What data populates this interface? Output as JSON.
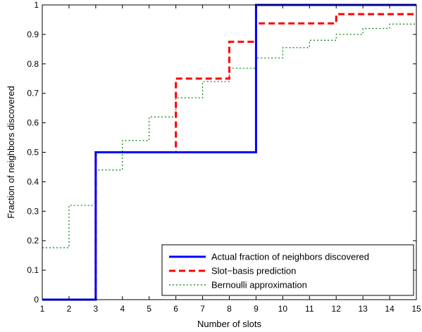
{
  "chart_data": {
    "type": "line",
    "xlabel": "Number of slots",
    "ylabel": "Fraction of neighbors discovered",
    "xlim": [
      1,
      15
    ],
    "ylim": [
      0,
      1
    ],
    "x_ticks": [
      "1",
      "2",
      "3",
      "4",
      "5",
      "6",
      "7",
      "8",
      "9",
      "10",
      "11",
      "12",
      "13",
      "14",
      "15"
    ],
    "y_ticks": [
      "0",
      "0.1",
      "0.2",
      "0.3",
      "0.4",
      "0.5",
      "0.6",
      "0.7",
      "0.8",
      "0.9",
      "1"
    ],
    "grid": false,
    "legend_position": "bottom-right",
    "series": [
      {
        "name": "Actual fraction of neighbors discovered",
        "color": "#0000ff",
        "style": "solid",
        "step": true,
        "points": [
          [
            1,
            0
          ],
          [
            3,
            0.5
          ],
          [
            9,
            1
          ],
          [
            15,
            1
          ]
        ]
      },
      {
        "name": "Slot−basis prediction",
        "color": "#ff0000",
        "style": "dashed",
        "step": true,
        "points": [
          [
            1,
            0
          ],
          [
            3,
            0.5
          ],
          [
            6,
            0.75
          ],
          [
            8,
            0.875
          ],
          [
            9,
            0.9375
          ],
          [
            12,
            0.96875
          ],
          [
            15,
            0.96875
          ]
        ]
      },
      {
        "name": "Bernoulli approximation",
        "color": "#008000",
        "style": "dotted",
        "step": true,
        "points": [
          [
            1,
            0.176
          ],
          [
            2,
            0.32
          ],
          [
            3,
            0.44
          ],
          [
            4,
            0.54
          ],
          [
            5,
            0.62
          ],
          [
            6,
            0.685
          ],
          [
            7,
            0.74
          ],
          [
            8,
            0.785
          ],
          [
            9,
            0.82
          ],
          [
            10,
            0.855
          ],
          [
            11,
            0.88
          ],
          [
            12,
            0.9
          ],
          [
            13,
            0.92
          ],
          [
            14,
            0.935
          ],
          [
            15,
            0.935
          ]
        ]
      }
    ]
  }
}
